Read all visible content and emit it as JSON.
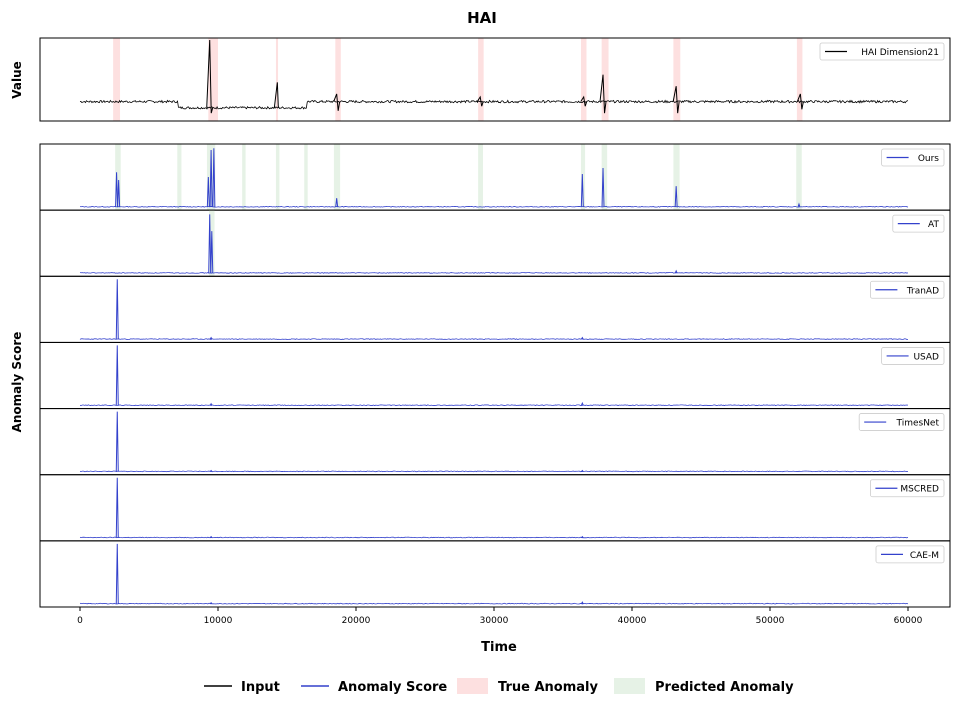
{
  "chart_data": {
    "type": "line",
    "title": "HAI",
    "xlabel": "Time",
    "xlim": [
      0,
      60000
    ],
    "x_ticks": [
      0,
      10000,
      20000,
      30000,
      40000,
      50000,
      60000
    ],
    "y_label_top": "Value",
    "y_label_bottom": "Anomaly Score",
    "input_series": {
      "name": "HAI Dimension21",
      "color": "#000000",
      "baseline": 0.2,
      "segments": [
        {
          "x_start": 0,
          "x_end": 7100,
          "level": 0.2
        },
        {
          "x_start": 7100,
          "x_end": 16400,
          "level": 0.12
        },
        {
          "x_start": 16400,
          "x_end": 60000,
          "level": 0.2
        }
      ],
      "spikes": [
        {
          "x": 9400,
          "value": 1.0,
          "min": 0.05
        },
        {
          "x": 14300,
          "value": 0.45
        },
        {
          "x": 18600,
          "value": 0.3,
          "min": 0.08
        },
        {
          "x": 29000,
          "value": 0.26,
          "min": 0.14
        },
        {
          "x": 36500,
          "value": 0.26,
          "min": 0.14
        },
        {
          "x": 37900,
          "value": 0.55,
          "min": 0.05
        },
        {
          "x": 43200,
          "value": 0.4,
          "min": 0.05
        },
        {
          "x": 52200,
          "value": 0.3,
          "min": 0.1
        }
      ]
    },
    "true_anomaly_regions": [
      [
        2400,
        2900
      ],
      [
        9300,
        10000
      ],
      [
        14200,
        14350
      ],
      [
        18500,
        18900
      ],
      [
        28850,
        29250
      ],
      [
        36300,
        36700
      ],
      [
        37800,
        38300
      ],
      [
        43000,
        43500
      ],
      [
        51950,
        52350
      ]
    ],
    "predicted_anomaly_regions": [
      [
        2550,
        2950
      ],
      [
        7050,
        7350
      ],
      [
        9200,
        9800
      ],
      [
        11750,
        12000
      ],
      [
        14200,
        14450
      ],
      [
        16250,
        16500
      ],
      [
        18400,
        18850
      ],
      [
        28850,
        29200
      ],
      [
        36300,
        36600
      ],
      [
        37800,
        38200
      ],
      [
        43000,
        43450
      ],
      [
        51900,
        52300
      ]
    ],
    "score_series": [
      {
        "name": "Ours",
        "color": "#3341cc",
        "spikes": [
          {
            "x": 2650,
            "value": 0.58
          },
          {
            "x": 2800,
            "value": 0.45
          },
          {
            "x": 9300,
            "value": 0.5
          },
          {
            "x": 9500,
            "value": 0.95
          },
          {
            "x": 9700,
            "value": 0.98
          },
          {
            "x": 18600,
            "value": 0.15
          },
          {
            "x": 36400,
            "value": 0.55
          },
          {
            "x": 37900,
            "value": 0.65
          },
          {
            "x": 43200,
            "value": 0.35
          },
          {
            "x": 52100,
            "value": 0.05
          }
        ]
      },
      {
        "name": "AT",
        "color": "#3341cc",
        "spikes": [
          {
            "x": 9400,
            "value": 0.98
          },
          {
            "x": 9550,
            "value": 0.7
          },
          {
            "x": 43200,
            "value": 0.04
          }
        ]
      },
      {
        "name": "TranAD",
        "color": "#3341cc",
        "spikes": [
          {
            "x": 2700,
            "value": 1.0
          },
          {
            "x": 9500,
            "value": 0.03
          },
          {
            "x": 36400,
            "value": 0.03
          }
        ]
      },
      {
        "name": "USAD",
        "color": "#3341cc",
        "spikes": [
          {
            "x": 2700,
            "value": 1.0
          },
          {
            "x": 9500,
            "value": 0.03
          },
          {
            "x": 36400,
            "value": 0.04
          }
        ]
      },
      {
        "name": "TimesNet",
        "color": "#3341cc",
        "spikes": [
          {
            "x": 2700,
            "value": 1.0
          },
          {
            "x": 9500,
            "value": 0.02
          },
          {
            "x": 36400,
            "value": 0.02
          }
        ]
      },
      {
        "name": "MSCRED",
        "color": "#3341cc",
        "spikes": [
          {
            "x": 2700,
            "value": 1.0
          },
          {
            "x": 9500,
            "value": 0.02
          },
          {
            "x": 36400,
            "value": 0.02
          }
        ]
      },
      {
        "name": "CAE-M",
        "color": "#3341cc",
        "spikes": [
          {
            "x": 2700,
            "value": 1.0
          },
          {
            "x": 9500,
            "value": 0.02
          },
          {
            "x": 36400,
            "value": 0.03
          }
        ]
      }
    ],
    "bottom_legend": [
      {
        "label": "Input",
        "kind": "line",
        "color": "#000000"
      },
      {
        "label": "Anomaly Score",
        "kind": "line",
        "color": "#3341cc"
      },
      {
        "label": "True Anomaly",
        "kind": "patch",
        "color": "#fde0e0"
      },
      {
        "label": "Predicted Anomaly",
        "kind": "patch",
        "color": "#e6f2e6"
      }
    ],
    "colors": {
      "true_anomaly": "#fde0e0",
      "predicted_anomaly": "#e6f2e6",
      "score": "#3341cc",
      "input": "#000000"
    },
    "grid": false,
    "series_legend_placement": "top-right"
  }
}
